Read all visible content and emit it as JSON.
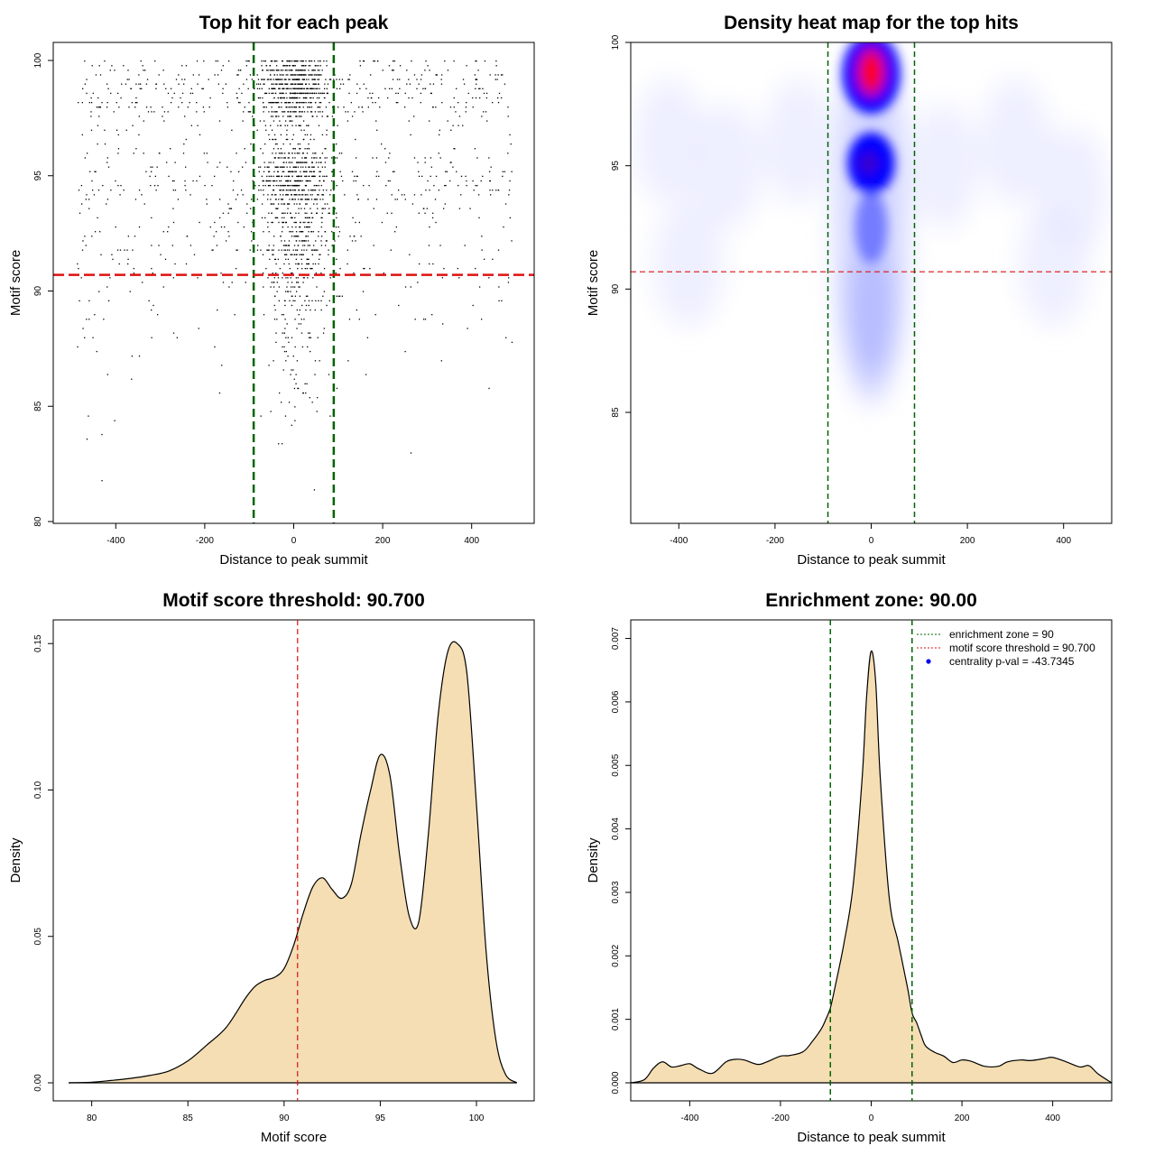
{
  "chart_data": [
    {
      "type": "scatter",
      "title": "Top hit for each peak",
      "xlabel": "Distance to peak summit",
      "ylabel": "Motif score",
      "xlim": [
        -500,
        500
      ],
      "ylim": [
        80,
        100
      ],
      "xticks": [
        "-400",
        "-200",
        "0",
        "200",
        "400"
      ],
      "yticks": [
        "80",
        "85",
        "90",
        "95",
        "100"
      ],
      "vlines": [
        -90,
        90
      ],
      "hline": 90.7,
      "line_colors": {
        "vertical": "#006400",
        "horizontal": "#dd1111"
      }
    },
    {
      "type": "heatmap",
      "title": "Density heat map for the top hits",
      "xlabel": "Distance to peak summit",
      "ylabel": "Motif score",
      "xlim": [
        -500,
        500
      ],
      "ylim": [
        80.5,
        100
      ],
      "xticks": [
        "-400",
        "-200",
        "0",
        "200",
        "400"
      ],
      "yticks": [
        "85",
        "90",
        "95",
        "100"
      ],
      "vlines": [
        -90,
        90
      ],
      "hline": 90.7,
      "hotspots": [
        {
          "x": 0,
          "y": 98.8,
          "level": "high"
        },
        {
          "x": 0,
          "y": 95.1,
          "level": "medium-high"
        },
        {
          "x": 0,
          "y": 92.5,
          "level": "medium"
        }
      ],
      "colors": {
        "low": "#ffffff",
        "mid": "#0000ff",
        "high": "#ff0000"
      }
    },
    {
      "type": "area",
      "title": "Motif score threshold: 90.700",
      "xlabel": "Motif score",
      "ylabel": "Density",
      "xlim": [
        78,
        103
      ],
      "ylim": [
        0,
        0.155
      ],
      "xticks": [
        "80",
        "85",
        "90",
        "95",
        "100"
      ],
      "yticks": [
        "0.00",
        "0.05",
        "0.10",
        "0.15"
      ],
      "x": [
        78.8,
        80,
        81,
        82,
        83,
        84,
        85,
        86,
        87,
        88,
        88.5,
        89,
        89.5,
        90,
        90.5,
        91,
        91.5,
        92,
        92.5,
        93,
        93.5,
        94,
        94.5,
        95,
        95.5,
        96,
        96.5,
        97,
        97.5,
        98,
        98.5,
        99,
        99.5,
        100,
        100.5,
        101,
        101.5,
        102.1
      ],
      "y": [
        0,
        0.0002,
        0.0008,
        0.0015,
        0.0025,
        0.004,
        0.0075,
        0.013,
        0.019,
        0.029,
        0.033,
        0.035,
        0.036,
        0.039,
        0.047,
        0.058,
        0.067,
        0.07,
        0.066,
        0.063,
        0.068,
        0.085,
        0.1,
        0.112,
        0.105,
        0.078,
        0.057,
        0.055,
        0.085,
        0.125,
        0.147,
        0.15,
        0.14,
        0.095,
        0.045,
        0.015,
        0.003,
        0
      ],
      "threshold": 90.7,
      "fill_color": "#f5deb3",
      "threshold_color": "#dd1111"
    },
    {
      "type": "area",
      "title": "Enrichment zone: 90.00",
      "xlabel": "Distance to peak summit",
      "ylabel": "Density",
      "xlim": [
        -530,
        530
      ],
      "ylim": [
        0,
        0.00715
      ],
      "xticks": [
        "-400",
        "-200",
        "0",
        "200",
        "400"
      ],
      "yticks": [
        "0.000",
        "0.001",
        "0.002",
        "0.003",
        "0.004",
        "0.005",
        "0.006",
        "0.007"
      ],
      "x": [
        -530,
        -500,
        -480,
        -460,
        -440,
        -420,
        -400,
        -380,
        -350,
        -320,
        -300,
        -280,
        -250,
        -230,
        -200,
        -180,
        -150,
        -130,
        -110,
        -100,
        -90,
        -80,
        -60,
        -40,
        -20,
        -10,
        0,
        10,
        20,
        40,
        60,
        80,
        90,
        100,
        110,
        120,
        140,
        160,
        180,
        200,
        220,
        250,
        280,
        300,
        330,
        350,
        380,
        400,
        430,
        460,
        480,
        500,
        530
      ],
      "y": [
        0,
        5e-05,
        0.00023,
        0.00033,
        0.00025,
        0.00027,
        0.0003,
        0.00022,
        0.00015,
        0.00033,
        0.00037,
        0.00036,
        0.00029,
        0.00033,
        0.00042,
        0.00043,
        0.00049,
        0.00065,
        0.00085,
        0.001,
        0.00118,
        0.0015,
        0.0022,
        0.0031,
        0.0048,
        0.0061,
        0.0068,
        0.0063,
        0.0048,
        0.0029,
        0.0022,
        0.0015,
        0.0011,
        0.00095,
        0.00075,
        0.00058,
        0.00048,
        0.00042,
        0.00032,
        0.00036,
        0.00034,
        0.00026,
        0.00026,
        0.00033,
        0.00036,
        0.00035,
        0.00038,
        0.0004,
        0.00033,
        0.00025,
        0.00027,
        0.00014,
        0
      ],
      "vlines": [
        -90,
        90
      ],
      "fill_color": "#f5deb3",
      "legend_position": "top-right",
      "legend": [
        {
          "label": "enrichment zone = 90",
          "color": "#006400",
          "style": "dotted-line"
        },
        {
          "label": "motif score threshold = 90.700",
          "color": "#dd1111",
          "style": "dotted-line"
        },
        {
          "label": "centrality p-val = -43.7345",
          "color": "#0000ee",
          "style": "point"
        }
      ]
    }
  ]
}
